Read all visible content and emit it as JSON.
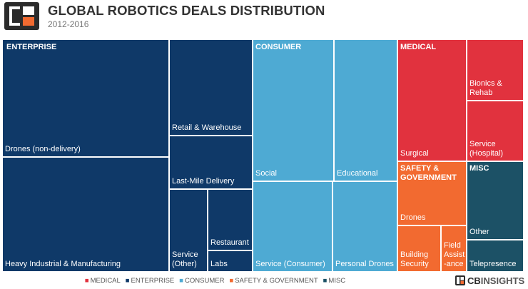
{
  "header": {
    "logo_name": "cb-insights-logo",
    "title": "GLOBAL ROBOTICS DEALS DISTRIBUTION",
    "subtitle": "2012-2016"
  },
  "colors": {
    "ENTERPRISE": "#0f3968",
    "CONSUMER": "#4eaad3",
    "MEDICAL": "#e1323e",
    "SAFETY & GOVERNMENT": "#f26a30",
    "MISC": "#1c5166"
  },
  "chart_data": {
    "type": "treemap",
    "title": "GLOBAL ROBOTICS DEALS DISTRIBUTION",
    "subtitle": "2012-2016",
    "groups": [
      {
        "name": "ENTERPRISE",
        "label": "ENTERPRISE",
        "children": [
          {
            "name": "Drones (non-delivery)",
            "value": 21.5
          },
          {
            "name": "Heavy Industrial & Manufacturing",
            "value": 23.0
          },
          {
            "name": "Retail & Warehouse",
            "value": 7.0
          },
          {
            "name": "Last-Mile Delivery",
            "value": 5.7
          },
          {
            "name": "Service (Other)",
            "value": 4.3
          },
          {
            "name": "Restaurant",
            "value": 2.5
          },
          {
            "name": "Labs",
            "value": 1.7
          }
        ]
      },
      {
        "name": "CONSUMER",
        "label": "CONSUMER",
        "children": [
          {
            "name": "Social",
            "value": 10.0
          },
          {
            "name": "Educational",
            "value": 8.0
          },
          {
            "name": "Service (Consumer)",
            "value": 6.0
          },
          {
            "name": "Personal Drones",
            "value": 5.5
          }
        ]
      },
      {
        "name": "MEDICAL",
        "label": "MEDICAL",
        "children": [
          {
            "name": "Surgical",
            "value": 6.3
          },
          {
            "name": "Bionics & Rehab",
            "value": 2.9
          },
          {
            "name": "Service (Hospital)",
            "value": 2.7
          }
        ]
      },
      {
        "name": "SAFETY & GOVERNMENT",
        "label": "SAFETY & GOVERNMENT",
        "children": [
          {
            "name": "Drones",
            "value": 3.3
          },
          {
            "name": "Building Security",
            "value": 2.1
          },
          {
            "name": "Field Assistance",
            "value": 1.3
          }
        ]
      },
      {
        "name": "MISC",
        "label": "MISC",
        "children": [
          {
            "name": "Other",
            "value": 2.2
          },
          {
            "name": "Telepresence",
            "value": 1.2
          }
        ]
      }
    ],
    "tile_labels": {
      "Drones (non-delivery)": "Drones (non-delivery)",
      "Heavy Industrial & Manufacturing": "Heavy Industrial & Manufacturing",
      "Retail & Warehouse": "Retail & Warehouse",
      "Last-Mile Delivery": "Last-Mile Delivery",
      "Service (Other)": "Service\n(Other)",
      "Restaurant": "Restaurant",
      "Labs": "Labs",
      "Social": "Social",
      "Educational": "Educational",
      "Service (Consumer)": "Service (Consumer)",
      "Personal Drones": "Personal Drones",
      "Surgical": "Surgical",
      "Bionics & Rehab": "Bionics &\nRehab",
      "Service (Hospital)": "Service\n(Hospital)",
      "Drones": "Drones",
      "Building Security": "Building\nSecurity",
      "Field Assistance": "Field\nAssist\n-ance",
      "Other": "Other",
      "Telepresence": "Telepresence"
    },
    "group_labels": {
      "ENTERPRISE": "ENTERPRISE",
      "CONSUMER": "CONSUMER",
      "MEDICAL": "MEDICAL",
      "SAFETY & GOVERNMENT": "SAFETY &\nGOVERNMENT",
      "MISC": "MISC"
    },
    "legend_position": "bottom-center",
    "legend": [
      "MEDICAL",
      "ENTERPRISE",
      "CONSUMER",
      "SAFETY & GOVERNMENT",
      "MISC"
    ]
  },
  "footer": {
    "brand_icon": "cb-insights-mark-icon",
    "brand_prefix": "CB",
    "brand_suffix": "INSIGHTS"
  }
}
